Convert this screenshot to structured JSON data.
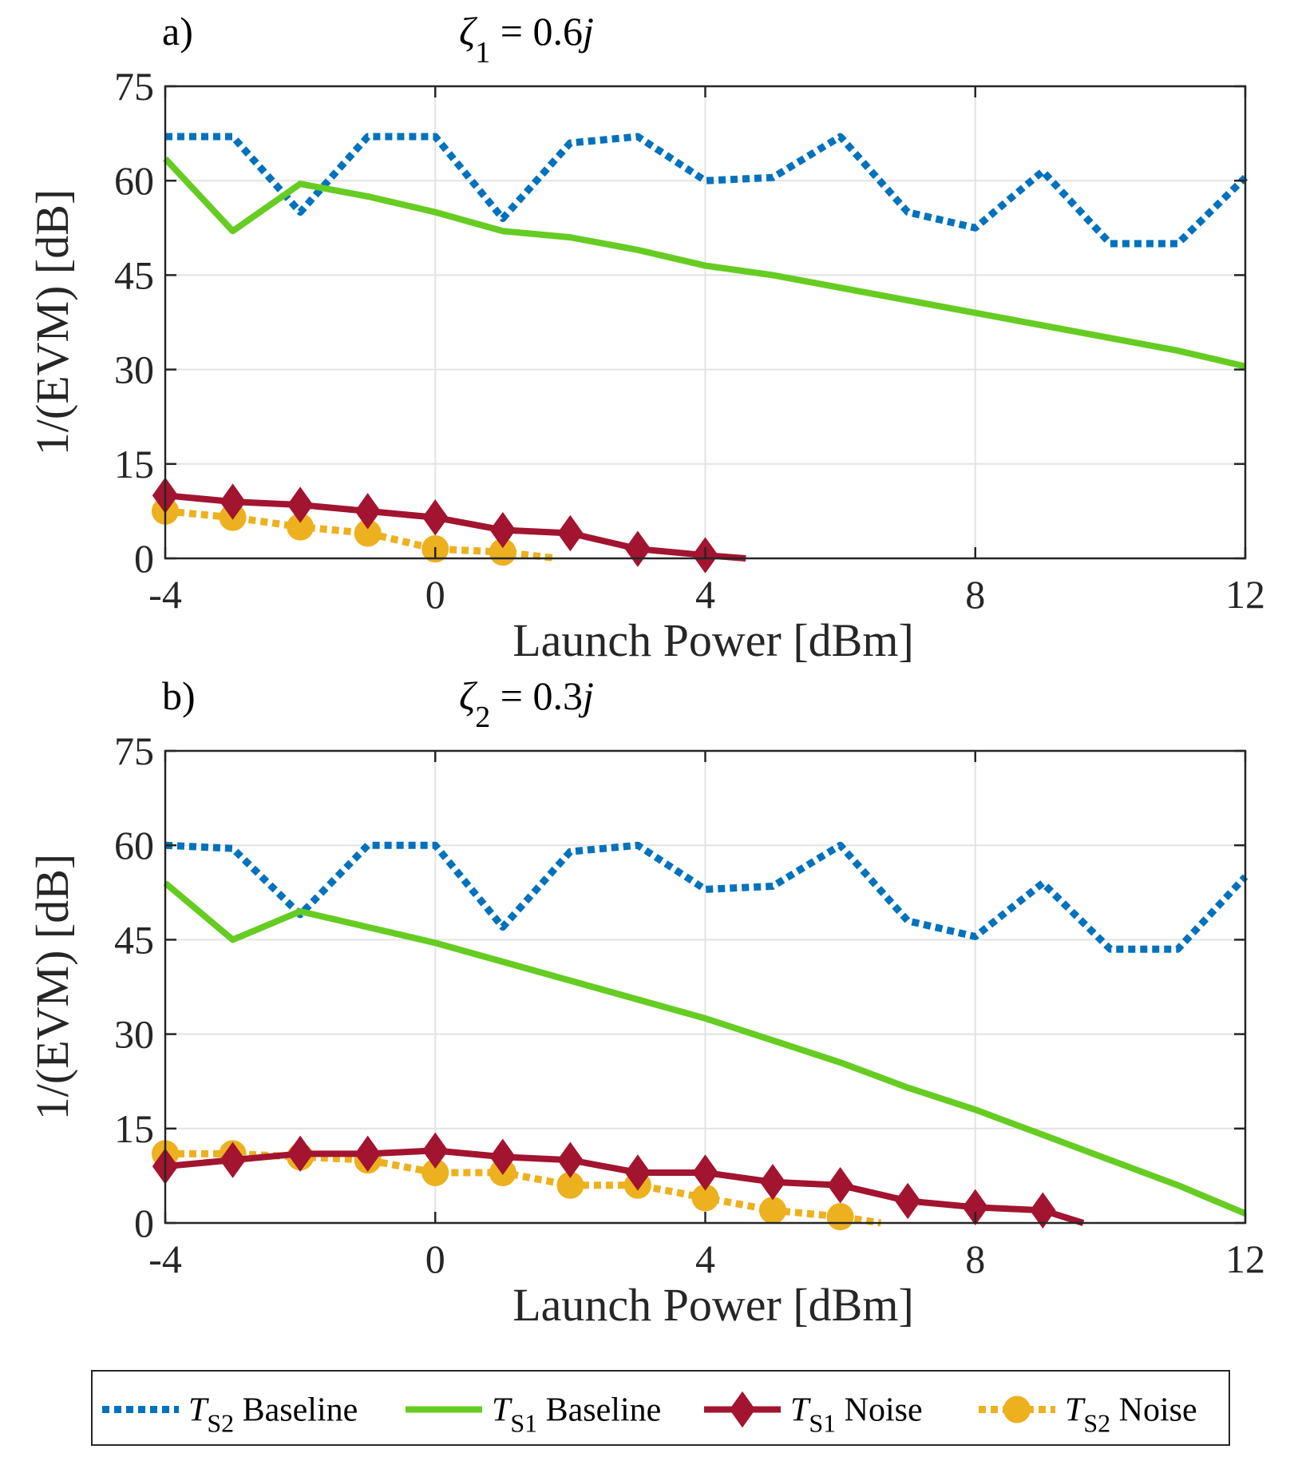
{
  "chart_data": [
    {
      "type": "line",
      "panel_label": "a)",
      "title": {
        "symbol": "ζ",
        "subscript": "1",
        "text": " = 0.6",
        "suffix": "j"
      },
      "xlabel": "Launch Power [dBm]",
      "ylabel": "1/(EVM) [dB]",
      "xlim": [
        -4,
        12
      ],
      "ylim": [
        0,
        75
      ],
      "xticks": [
        -4,
        0,
        4,
        8,
        12
      ],
      "yticks": [
        0,
        15,
        30,
        45,
        60,
        75
      ],
      "grid": true,
      "series": [
        {
          "key": "ts2_baseline",
          "x": [
            -4,
            -3,
            -2,
            -1,
            0,
            1,
            2,
            3,
            4,
            5,
            6,
            7,
            8,
            9,
            10,
            11,
            12
          ],
          "values": [
            67,
            67,
            55,
            67,
            67,
            54,
            66,
            67,
            60,
            60.5,
            67,
            55,
            52.5,
            61.5,
            50,
            50,
            60.5
          ]
        },
        {
          "key": "ts1_baseline",
          "x": [
            -4,
            -3,
            -2,
            -1,
            0,
            1,
            2,
            3,
            4,
            5,
            6,
            7,
            8,
            9,
            10,
            11,
            12
          ],
          "values": [
            63.5,
            52,
            59.5,
            57.5,
            55,
            52,
            51,
            49,
            46.5,
            45,
            43,
            41,
            39,
            37,
            35,
            33,
            30.5
          ]
        },
        {
          "key": "ts1_noise",
          "x": [
            -4,
            -3,
            -2,
            -1,
            0,
            1,
            2,
            3,
            4,
            4.6
          ],
          "values": [
            10,
            9,
            8.5,
            7.5,
            6.5,
            4.5,
            4,
            1.5,
            0.5,
            0
          ]
        },
        {
          "key": "ts2_noise",
          "x": [
            -4,
            -3,
            -2,
            -1,
            0,
            1,
            1.8
          ],
          "values": [
            7.5,
            6.5,
            5,
            4,
            1.5,
            1,
            0
          ]
        }
      ]
    },
    {
      "type": "line",
      "panel_label": "b)",
      "title": {
        "symbol": "ζ",
        "subscript": "2",
        "text": " = 0.3",
        "suffix": "j"
      },
      "xlabel": "Launch Power [dBm]",
      "ylabel": "1/(EVM) [dB]",
      "xlim": [
        -4,
        12
      ],
      "ylim": [
        0,
        75
      ],
      "xticks": [
        -4,
        0,
        4,
        8,
        12
      ],
      "yticks": [
        0,
        15,
        30,
        45,
        60,
        75
      ],
      "grid": true,
      "series": [
        {
          "key": "ts2_baseline",
          "x": [
            -4,
            -3,
            -2,
            -1,
            0,
            1,
            2,
            3,
            4,
            5,
            6,
            7,
            8,
            9,
            10,
            11,
            12
          ],
          "values": [
            60,
            59.5,
            49,
            60,
            60,
            47,
            59,
            60,
            53,
            53.5,
            60,
            48,
            45.5,
            54,
            43.5,
            43.5,
            55
          ]
        },
        {
          "key": "ts1_baseline",
          "x": [
            -4,
            -3,
            -2,
            -1,
            0,
            1,
            2,
            3,
            4,
            5,
            6,
            7,
            8,
            9,
            10,
            11,
            12
          ],
          "values": [
            54,
            45,
            49.5,
            47,
            44.5,
            41.5,
            38.5,
            35.5,
            32.5,
            29,
            25.5,
            21.5,
            18,
            14,
            10,
            6,
            1.5
          ]
        },
        {
          "key": "ts1_noise",
          "x": [
            -4,
            -3,
            -2,
            -1,
            0,
            1,
            2,
            3,
            4,
            5,
            6,
            7,
            8,
            9,
            9.6
          ],
          "values": [
            9,
            10,
            11,
            11,
            11.5,
            10.5,
            10,
            8,
            8,
            6.5,
            6,
            3.5,
            2.5,
            2,
            0
          ]
        },
        {
          "key": "ts2_noise",
          "x": [
            -4,
            -3,
            -2,
            -1,
            0,
            1,
            2,
            3,
            4,
            5,
            6,
            6.6
          ],
          "values": [
            11,
            11,
            10.5,
            10,
            8,
            8,
            6,
            6,
            4,
            2,
            1,
            0
          ]
        }
      ]
    }
  ],
  "legend": {
    "placement": "bottom",
    "entries": [
      {
        "key": "ts2_baseline",
        "symbol": "T",
        "subscript": "S2",
        "label": " Baseline",
        "color": "#0072BD",
        "dash": "dotted",
        "marker": "none"
      },
      {
        "key": "ts1_baseline",
        "symbol": "T",
        "subscript": "S1",
        "label": " Baseline",
        "color": "#66CC22",
        "dash": "solid",
        "marker": "none"
      },
      {
        "key": "ts1_noise",
        "symbol": "T",
        "subscript": "S1",
        "label": " Noise",
        "color": "#A2142F",
        "dash": "solid",
        "marker": "diamond"
      },
      {
        "key": "ts2_noise",
        "symbol": "T",
        "subscript": "S2",
        "label": " Noise",
        "color": "#EDB120",
        "dash": "dotted",
        "marker": "circle"
      }
    ]
  }
}
